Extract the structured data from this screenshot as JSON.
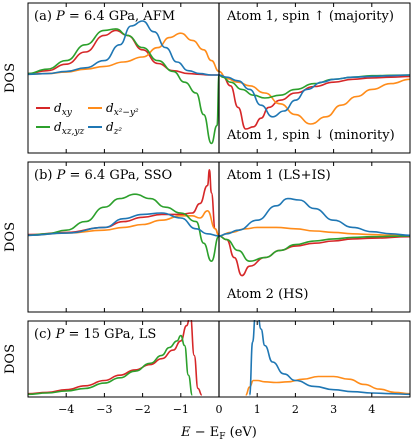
{
  "colors": {
    "dxy": "#d62728",
    "dx2y2": "#ff8c1a",
    "dxzyz": "#2ca02c",
    "dz2": "#1f77b4"
  },
  "xaxis": {
    "label": "E − E_F (eV)",
    "ticks": [
      -4,
      -3,
      -2,
      -1,
      0,
      1,
      2,
      3,
      4
    ],
    "xlim": [
      -5,
      5
    ]
  },
  "ylabel": "DOS",
  "panels": [
    {
      "title_prefix": "(a) ",
      "title_var": "P",
      "title_rest": " = 6.4 GPa, AFM",
      "right_top": "Atom 1, spin ↑ (majority)",
      "right_bottom": "Atom 1, spin ↓ (minority)"
    },
    {
      "title_prefix": "(b) ",
      "title_var": "P",
      "title_rest": " = 6.4 GPa, SSO",
      "right_top": "Atom 1 (LS+IS)",
      "right_bottom": "Atom 2 (HS)"
    },
    {
      "title_prefix": "(c) ",
      "title_var": "P",
      "title_rest": " = 15 GPa, LS",
      "right_top": "",
      "right_bottom": ""
    }
  ],
  "legend": [
    {
      "key": "dxy",
      "base": "d",
      "sub": "xy",
      "sup": ""
    },
    {
      "key": "dx2y2",
      "base": "d",
      "sub": "x²−y²",
      "sup": ""
    },
    {
      "key": "dxzyz",
      "base": "d",
      "sub": "xz,yz",
      "sup": ""
    },
    {
      "key": "dz2",
      "base": "d",
      "sub": "z²",
      "sup": ""
    }
  ],
  "chart_data": [
    {
      "type": "line",
      "panel": "a",
      "xlim": [
        -5,
        5
      ],
      "ylim": [
        -1,
        1
      ],
      "series": [
        {
          "name": "d_xy",
          "color_key": "dxy",
          "x": [
            -5,
            -4.5,
            -4,
            -3.5,
            -3,
            -2.7,
            -2.4,
            -2,
            -1.6,
            -1.2,
            -0.8,
            -0.5,
            -0.3,
            -0.1,
            0,
            0.1,
            0.3,
            0.5,
            0.7,
            0.9,
            1.1,
            1.3,
            1.6,
            2,
            2.5,
            3,
            3.5,
            4,
            4.5,
            5
          ],
          "y": [
            0.02,
            0.06,
            0.15,
            0.32,
            0.55,
            0.62,
            0.55,
            0.35,
            0.16,
            0.06,
            0.02,
            0.01,
            0,
            0,
            0,
            -0.02,
            -0.15,
            -0.45,
            -0.75,
            -0.72,
            -0.6,
            -0.45,
            -0.35,
            -0.25,
            -0.16,
            -0.1,
            -0.06,
            -0.04,
            -0.03,
            -0.02
          ]
        },
        {
          "name": "d_x2-y2",
          "color_key": "dx2y2",
          "x": [
            -5,
            -4.5,
            -4,
            -3.5,
            -3,
            -2.5,
            -2,
            -1.6,
            -1.3,
            -1,
            -0.7,
            -0.4,
            -0.2,
            0,
            0.2,
            0.5,
            0.8,
            1.2,
            1.6,
            2,
            2.4,
            2.8,
            3.2,
            3.6,
            4,
            4.5,
            5
          ],
          "y": [
            0.01,
            0.02,
            0.04,
            0.08,
            0.12,
            0.18,
            0.25,
            0.38,
            0.52,
            0.58,
            0.48,
            0.35,
            0.2,
            0.05,
            -0.05,
            -0.1,
            -0.15,
            -0.25,
            -0.4,
            -0.55,
            -0.68,
            -0.58,
            -0.42,
            -0.3,
            -0.2,
            -0.12,
            -0.06
          ]
        },
        {
          "name": "d_xz,yz",
          "color_key": "dxzyz",
          "x": [
            -5,
            -4.5,
            -4,
            -3.5,
            -3,
            -2.7,
            -2.4,
            -2,
            -1.6,
            -1.2,
            -0.9,
            -0.6,
            -0.4,
            -0.2,
            -0.05,
            0,
            0.1,
            0.3,
            0.6,
            0.9,
            1.2,
            1.6,
            2,
            2.5,
            3,
            3.5,
            4,
            5
          ],
          "y": [
            0.02,
            0.08,
            0.2,
            0.42,
            0.62,
            0.64,
            0.55,
            0.38,
            0.2,
            0.05,
            -0.1,
            -0.25,
            -0.55,
            -0.95,
            -0.7,
            0,
            -0.03,
            -0.1,
            -0.2,
            -0.28,
            -0.32,
            -0.28,
            -0.2,
            -0.12,
            -0.06,
            -0.03,
            -0.01,
            0
          ]
        },
        {
          "name": "d_z2",
          "color_key": "dz2",
          "x": [
            -5,
            -4.5,
            -4,
            -3.5,
            -3,
            -2.6,
            -2.3,
            -2,
            -1.7,
            -1.4,
            -1.1,
            -0.8,
            -0.5,
            -0.2,
            0,
            0.2,
            0.5,
            0.8,
            1.1,
            1.4,
            1.7,
            2,
            2.3,
            2.7,
            3,
            3.5,
            4,
            4.5,
            5
          ],
          "y": [
            0.01,
            0.02,
            0.05,
            0.1,
            0.2,
            0.42,
            0.68,
            0.75,
            0.6,
            0.38,
            0.18,
            0.06,
            0.02,
            0,
            0,
            -0.03,
            -0.08,
            -0.2,
            -0.42,
            -0.58,
            -0.5,
            -0.35,
            -0.2,
            -0.1,
            -0.06,
            -0.03,
            -0.02,
            -0.01,
            0
          ]
        }
      ]
    },
    {
      "type": "line",
      "panel": "b",
      "xlim": [
        -5,
        5
      ],
      "ylim": [
        -1,
        1
      ],
      "series": [
        {
          "name": "d_xy",
          "color_key": "dxy",
          "x": [
            -5,
            -4,
            -3,
            -2.5,
            -2,
            -1.5,
            -1,
            -0.7,
            -0.5,
            -0.3,
            -0.25,
            -0.2,
            -0.1,
            0,
            0.2,
            0.4,
            0.6,
            0.8,
            1.2,
            1.6,
            2,
            2.5,
            3,
            3.5,
            4,
            5
          ],
          "y": [
            0.02,
            0.05,
            0.12,
            0.2,
            0.26,
            0.3,
            0.3,
            0.32,
            0.45,
            0.7,
            0.92,
            0.6,
            0.1,
            0,
            -0.05,
            -0.3,
            -0.55,
            -0.42,
            -0.3,
            -0.2,
            -0.14,
            -0.1,
            -0.07,
            -0.04,
            -0.03,
            -0.01
          ]
        },
        {
          "name": "d_x2-y2",
          "color_key": "dx2y2",
          "x": [
            -5,
            -4,
            -3,
            -2.5,
            -2,
            -1.5,
            -1,
            -0.7,
            -0.5,
            -0.3,
            -0.1,
            0,
            0.3,
            0.7,
            1,
            1.5,
            2,
            2.5,
            3,
            3.5,
            4,
            4.5,
            5
          ],
          "y": [
            0.01,
            0.04,
            0.08,
            0.12,
            0.16,
            0.22,
            0.28,
            0.28,
            0.25,
            0.35,
            0.1,
            0,
            0.05,
            0.1,
            0.12,
            0.12,
            0.1,
            0.07,
            0.05,
            0.03,
            0.02,
            0.01,
            0.01
          ]
        },
        {
          "name": "d_xz,yz",
          "color_key": "dxzyz",
          "x": [
            -5,
            -4.5,
            -4,
            -3.5,
            -3,
            -2.6,
            -2.2,
            -1.8,
            -1.4,
            -1,
            -0.6,
            -0.4,
            -0.2,
            0,
            0.2,
            0.5,
            0.8,
            1.2,
            1.6,
            2,
            2.5,
            3,
            3.5,
            4,
            5
          ],
          "y": [
            0.01,
            0.03,
            0.08,
            0.2,
            0.4,
            0.52,
            0.58,
            0.52,
            0.4,
            0.32,
            0.2,
            -0.1,
            -0.35,
            0,
            -0.05,
            -0.2,
            -0.35,
            -0.3,
            -0.2,
            -0.12,
            -0.07,
            -0.04,
            -0.02,
            -0.01,
            0
          ]
        },
        {
          "name": "d_z2",
          "color_key": "dz2",
          "x": [
            -5,
            -4,
            -3,
            -2.5,
            -2,
            -1.5,
            -1,
            -0.6,
            -0.3,
            0,
            0.2,
            0.5,
            1,
            1.5,
            1.8,
            2.1,
            2.5,
            3,
            3.5,
            4,
            4.5,
            5
          ],
          "y": [
            0.01,
            0.04,
            0.12,
            0.24,
            0.3,
            0.32,
            0.25,
            0.1,
            0.03,
            0,
            0.03,
            0.08,
            0.22,
            0.42,
            0.52,
            0.5,
            0.38,
            0.22,
            0.12,
            0.06,
            0.03,
            0.01
          ]
        }
      ]
    },
    {
      "type": "line",
      "panel": "c",
      "xlim": [
        -5,
        5
      ],
      "ylim": [
        0,
        1
      ],
      "series": [
        {
          "name": "d_xy",
          "color_key": "dxy",
          "x": [
            -5,
            -4.5,
            -4,
            -3.5,
            -3,
            -2.6,
            -2.2,
            -1.8,
            -1.5,
            -1.2,
            -1,
            -0.85,
            -0.75,
            -0.65,
            -0.55,
            -0.45
          ],
          "y": [
            0.02,
            0.04,
            0.08,
            0.14,
            0.22,
            0.3,
            0.38,
            0.46,
            0.55,
            0.68,
            0.82,
            1.05,
            1.2,
            0.6,
            0.1,
            0
          ]
        },
        {
          "name": "d_x2-y2",
          "color_key": "dx2y2",
          "x": [
            0.7,
            0.8,
            0.9,
            1,
            1.2,
            1.5,
            1.8,
            2.2,
            2.6,
            3,
            3.4,
            3.8,
            4.2,
            4.6,
            5
          ],
          "y": [
            0,
            0.12,
            0.22,
            0.22,
            0.2,
            0.19,
            0.2,
            0.24,
            0.28,
            0.28,
            0.24,
            0.16,
            0.09,
            0.04,
            0.02
          ]
        },
        {
          "name": "d_xz,yz",
          "color_key": "dxzyz",
          "x": [
            -5,
            -4.5,
            -4,
            -3.5,
            -3,
            -2.6,
            -2.2,
            -1.8,
            -1.5,
            -1.3,
            -1.1,
            -1,
            -0.9,
            -0.8,
            -0.7
          ],
          "y": [
            0.01,
            0.03,
            0.06,
            0.1,
            0.18,
            0.26,
            0.36,
            0.48,
            0.6,
            0.72,
            0.82,
            0.9,
            0.75,
            0.3,
            0
          ]
        },
        {
          "name": "d_z2",
          "color_key": "dz2",
          "x": [
            0.8,
            0.88,
            0.95,
            1,
            1.1,
            1.2,
            1.4,
            1.7,
            2,
            2.5,
            3,
            3.5,
            4,
            4.5,
            5
          ],
          "y": [
            0,
            0.8,
            1.2,
            1.3,
            1.0,
            0.75,
            0.5,
            0.32,
            0.22,
            0.13,
            0.08,
            0.05,
            0.03,
            0.02,
            0.01
          ]
        }
      ]
    }
  ]
}
